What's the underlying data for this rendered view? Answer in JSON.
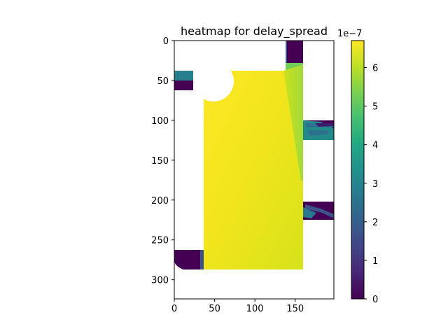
{
  "chart_data": {
    "type": "heatmap",
    "title": "heatmap for delay_spread",
    "xlabel": "",
    "ylabel": "",
    "x_ticks": [
      "0",
      "50",
      "100",
      "150"
    ],
    "y_ticks": [
      "0",
      "50",
      "100",
      "150",
      "200",
      "250",
      "300"
    ],
    "x_range": [
      0,
      198
    ],
    "y_range": [
      0,
      324
    ],
    "colorbar": {
      "colormap": "viridis",
      "min": 0,
      "max": 6.7e-07,
      "offset_label": "1e−7",
      "ticks": [
        "0",
        "1",
        "2",
        "3",
        "4",
        "5",
        "6"
      ]
    },
    "regions": [
      {
        "name": "main-block",
        "x": [
          36,
          160
        ],
        "y": [
          38,
          288
        ],
        "value_range": [
          6e-07,
          6.7e-07
        ]
      },
      {
        "name": "top-strip",
        "x": [
          138,
          160
        ],
        "y": [
          28,
          100
        ],
        "value_range": [
          5e-07,
          5.8e-07
        ]
      },
      {
        "name": "top-dark-column",
        "x": [
          138,
          160
        ],
        "y": [
          0,
          28
        ],
        "value_range": [
          1e-08,
          5e-08
        ]
      },
      {
        "name": "left-teal-band",
        "x": [
          0,
          25
        ],
        "y": [
          38,
          50
        ],
        "value_range": [
          3.2e-07,
          3.8e-07
        ]
      },
      {
        "name": "left-dark-band",
        "x": [
          0,
          25
        ],
        "y": [
          50,
          60
        ],
        "value_range": [
          1e-08,
          5e-08
        ]
      },
      {
        "name": "right-upper-band",
        "x": [
          160,
          198
        ],
        "y": [
          100,
          125
        ],
        "value_range": [
          1e-08,
          4.5e-07
        ]
      },
      {
        "name": "right-lower-band",
        "x": [
          160,
          198
        ],
        "y": [
          200,
          225
        ],
        "value_range": [
          1e-08,
          3.5e-07
        ]
      },
      {
        "name": "bottom-left-dark",
        "x": [
          0,
          36
        ],
        "y": [
          264,
          288
        ],
        "value_range": [
          1e-08,
          5e-08
        ]
      }
    ],
    "colors": {
      "viridis_0": "#440154",
      "viridis_25": "#3b528b",
      "viridis_50": "#21918c",
      "viridis_75": "#5ec962",
      "viridis_100": "#fde725"
    }
  }
}
